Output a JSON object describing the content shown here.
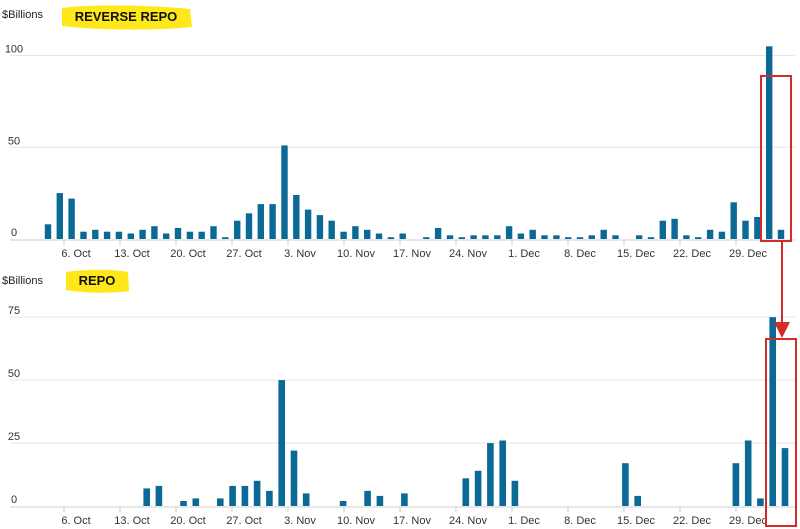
{
  "colors": {
    "bar": "#0b6996",
    "highlight_box": "#d42a2a",
    "marker": "#ffe600"
  },
  "chart_data": [
    {
      "type": "bar",
      "title": "REVERSE REPO",
      "ylabel": "$Billions",
      "ylim": [
        0,
        115
      ],
      "yticks": [
        0,
        50,
        100
      ],
      "xtick_labels": [
        "6. Oct",
        "13. Oct",
        "20. Oct",
        "27. Oct",
        "3. Nov",
        "10. Nov",
        "17. Nov",
        "24. Nov",
        "1. Dec",
        "8. Dec",
        "15. Dec",
        "22. Dec",
        "29. Dec"
      ],
      "xtick_positions": [
        2,
        8,
        14,
        20,
        26,
        32,
        38,
        44,
        50,
        56,
        62,
        68,
        74
      ],
      "grid": true,
      "highlight_range": [
        76,
        77
      ],
      "values": [
        8,
        25,
        22,
        4,
        5,
        4,
        4,
        3,
        5,
        7,
        3,
        6,
        4,
        4,
        7,
        1,
        10,
        14,
        19,
        19,
        51,
        24,
        16,
        13,
        10,
        4,
        7,
        5,
        3,
        1,
        3,
        0,
        1,
        6,
        2,
        1,
        2,
        2,
        2,
        7,
        3,
        5,
        2,
        2,
        1,
        1,
        2,
        5,
        2,
        0,
        2,
        1,
        10,
        11,
        2,
        1,
        5,
        4,
        20,
        10,
        12,
        105,
        5
      ]
    },
    {
      "type": "bar",
      "title": "REPO",
      "ylabel": "$Billions",
      "ylim": [
        0,
        85
      ],
      "yticks": [
        0,
        25,
        50,
        75
      ],
      "xtick_labels": [
        "6. Oct",
        "13. Oct",
        "20. Oct",
        "27. Oct",
        "3. Nov",
        "10. Nov",
        "17. Nov",
        "24. Nov",
        "1. Dec",
        "8. Dec",
        "15. Dec",
        "22. Dec",
        "29. Dec"
      ],
      "xtick_positions": [
        2,
        8,
        14,
        20,
        26,
        32,
        38,
        44,
        50,
        56,
        62,
        68,
        74
      ],
      "grid": true,
      "highlight_range": [
        76,
        77
      ],
      "values": [
        0,
        0,
        0,
        0,
        0,
        0,
        7,
        8,
        0,
        2,
        3,
        0,
        3,
        8,
        8,
        10,
        6,
        50,
        22,
        5,
        0,
        0,
        2,
        0,
        6,
        4,
        0,
        5,
        0,
        0,
        0,
        0,
        11,
        14,
        25,
        26,
        10,
        0,
        0,
        0,
        0,
        0,
        0,
        0,
        0,
        17,
        4,
        0,
        0,
        0,
        0,
        0,
        0,
        0,
        17,
        26,
        3,
        75,
        23
      ]
    }
  ]
}
